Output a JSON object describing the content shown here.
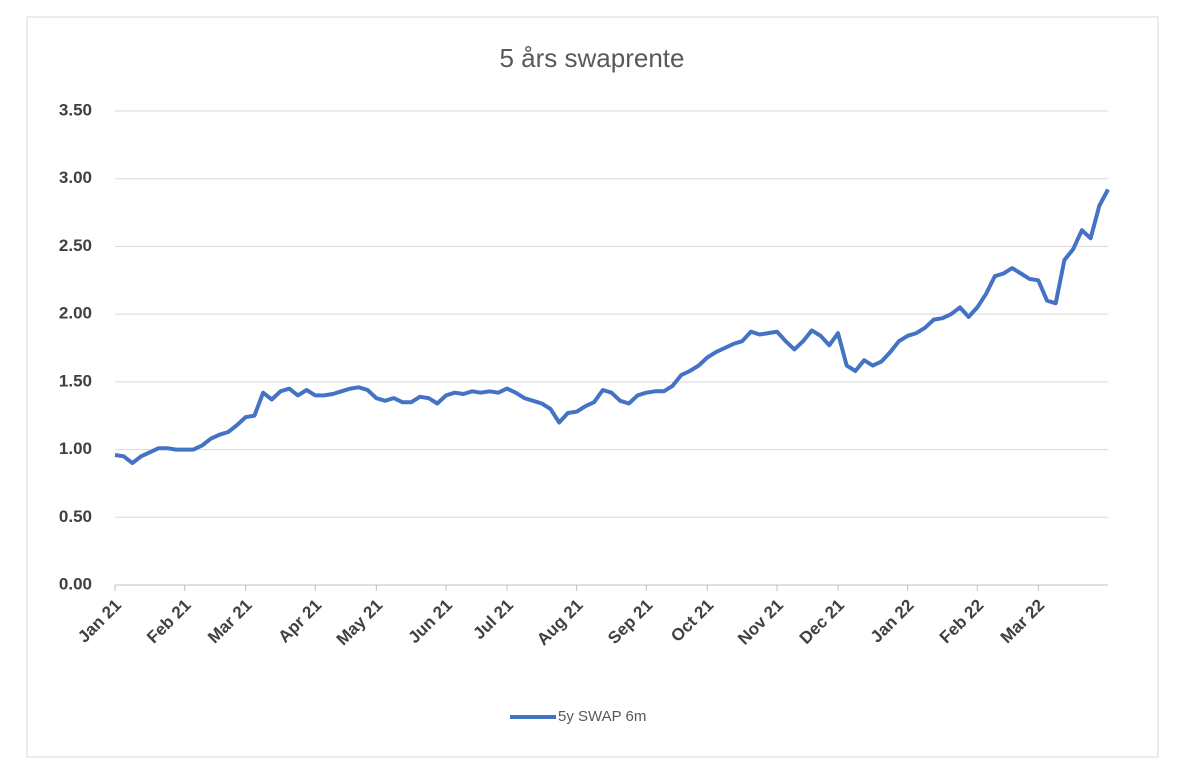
{
  "chart_data": {
    "type": "line",
    "title": "5 års swaprente",
    "categories": [
      "Jan 21",
      null,
      null,
      null,
      null,
      null,
      null,
      null,
      "Feb 21",
      null,
      null,
      null,
      null,
      null,
      null,
      "Mar 21",
      null,
      null,
      null,
      null,
      null,
      null,
      null,
      "Apr 21",
      null,
      null,
      null,
      null,
      null,
      null,
      "May 21",
      null,
      null,
      null,
      null,
      null,
      null,
      null,
      "Jun 21",
      null,
      null,
      null,
      null,
      null,
      null,
      "Jul 21",
      null,
      null,
      null,
      null,
      null,
      null,
      null,
      "Aug 21",
      null,
      null,
      null,
      null,
      null,
      null,
      null,
      "Sep 21",
      null,
      null,
      null,
      null,
      null,
      null,
      "Oct 21",
      null,
      null,
      null,
      null,
      null,
      null,
      null,
      "Nov 21",
      null,
      null,
      null,
      null,
      null,
      null,
      "Dec 21",
      null,
      null,
      null,
      null,
      null,
      null,
      null,
      "Jan 22",
      null,
      null,
      null,
      null,
      null,
      null,
      null,
      "Feb 22",
      null,
      null,
      null,
      null,
      null,
      null,
      "Mar 22",
      null,
      null,
      null,
      null,
      null,
      null,
      null,
      null
    ],
    "series": [
      {
        "name": "5y SWAP 6m",
        "color": "#4472c4",
        "values": [
          0.96,
          0.95,
          0.9,
          0.95,
          0.98,
          1.01,
          1.01,
          1.0,
          1.0,
          1.0,
          1.03,
          1.08,
          1.11,
          1.13,
          1.18,
          1.24,
          1.25,
          1.42,
          1.37,
          1.43,
          1.45,
          1.4,
          1.44,
          1.4,
          1.4,
          1.41,
          1.43,
          1.45,
          1.46,
          1.44,
          1.38,
          1.36,
          1.38,
          1.35,
          1.35,
          1.39,
          1.38,
          1.34,
          1.4,
          1.42,
          1.41,
          1.43,
          1.42,
          1.43,
          1.42,
          1.45,
          1.42,
          1.38,
          1.36,
          1.34,
          1.3,
          1.2,
          1.27,
          1.28,
          1.32,
          1.35,
          1.44,
          1.42,
          1.36,
          1.34,
          1.4,
          1.42,
          1.43,
          1.43,
          1.47,
          1.55,
          1.58,
          1.62,
          1.68,
          1.72,
          1.75,
          1.78,
          1.8,
          1.87,
          1.85,
          1.86,
          1.87,
          1.8,
          1.74,
          1.8,
          1.88,
          1.84,
          1.77,
          1.86,
          1.62,
          1.58,
          1.66,
          1.62,
          1.65,
          1.72,
          1.8,
          1.84,
          1.86,
          1.9,
          1.96,
          1.97,
          2.0,
          2.05,
          1.98,
          2.05,
          2.15,
          2.28,
          2.3,
          2.34,
          2.3,
          2.26,
          2.25,
          2.1,
          2.08,
          2.4,
          2.48,
          2.62,
          2.56,
          2.8,
          2.92
        ]
      }
    ],
    "ylim": [
      0,
      3.5
    ],
    "yticks": [
      {
        "value": 0,
        "label": "0.00"
      },
      {
        "value": 0.5,
        "label": "0.50"
      },
      {
        "value": 1,
        "label": "1.00"
      },
      {
        "value": 1.5,
        "label": "1.50"
      },
      {
        "value": 2,
        "label": "2.00"
      },
      {
        "value": 2.5,
        "label": "2.50"
      },
      {
        "value": 3,
        "label": "3.00"
      },
      {
        "value": 3.5,
        "label": "3.50"
      }
    ],
    "grid": true,
    "legend": "bottom"
  }
}
